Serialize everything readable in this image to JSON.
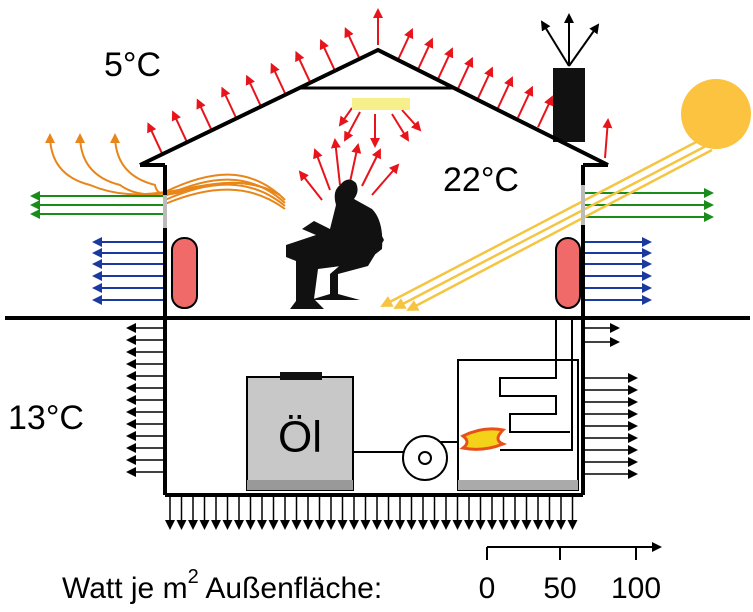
{
  "labels": {
    "outside": "5°C",
    "inside": "22°C",
    "basement": "13°C",
    "tank": "Öl"
  },
  "scale": {
    "caption": "Watt je m",
    "superscript": "2",
    "caption_end": " Außenfläche:",
    "ticks": [
      "0",
      "50",
      "100"
    ]
  }
}
